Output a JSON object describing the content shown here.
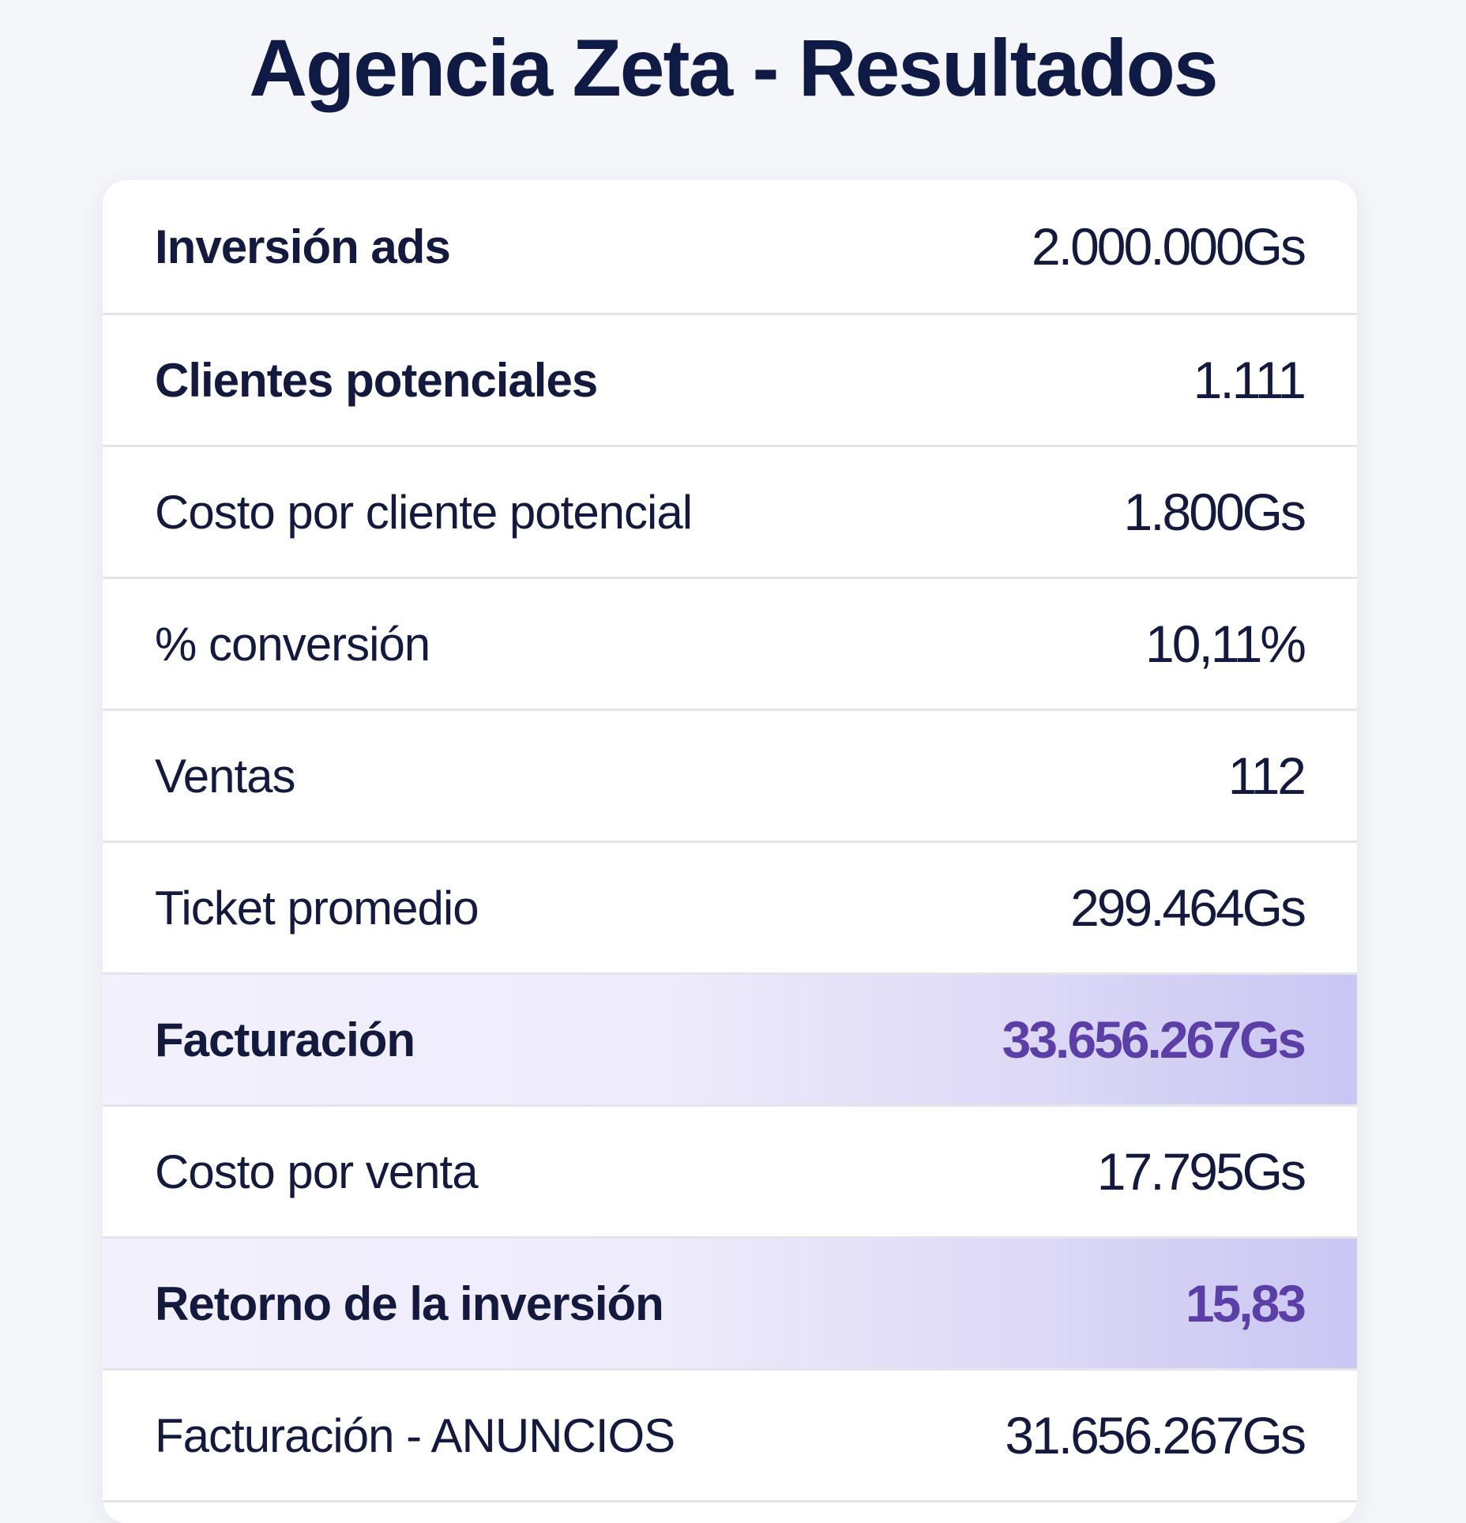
{
  "title": "Agencia Zeta - Resultados",
  "colors": {
    "title": "#101b45",
    "text": "#131a3d",
    "highlight_value": "#5b3fa6",
    "highlight_bg_end": "#c9c6f3",
    "background": "#f4f6fa",
    "card": "#ffffff"
  },
  "rows": [
    {
      "label": "Inversión ads",
      "value": "2.000.000Gs",
      "bold": true,
      "highlight": false
    },
    {
      "label": "Clientes potenciales",
      "value": "1.111",
      "bold": true,
      "highlight": false
    },
    {
      "label": "Costo por cliente potencial",
      "value": "1.800Gs",
      "bold": false,
      "highlight": false
    },
    {
      "label": "% conversión",
      "value": "10,11%",
      "bold": false,
      "highlight": false
    },
    {
      "label": "Ventas",
      "value": "112",
      "bold": false,
      "highlight": false
    },
    {
      "label": "Ticket promedio",
      "value": "299.464Gs",
      "bold": false,
      "highlight": false
    },
    {
      "label": "Facturación",
      "value": "33.656.267Gs",
      "bold": true,
      "highlight": true
    },
    {
      "label": "Costo por venta",
      "value": "17.795Gs",
      "bold": false,
      "highlight": false
    },
    {
      "label": "Retorno de la inversión",
      "value": "15,83",
      "bold": true,
      "highlight": true
    },
    {
      "label": "Facturación - ANUNCIOS",
      "value": "31.656.267Gs",
      "bold": false,
      "highlight": false
    }
  ]
}
